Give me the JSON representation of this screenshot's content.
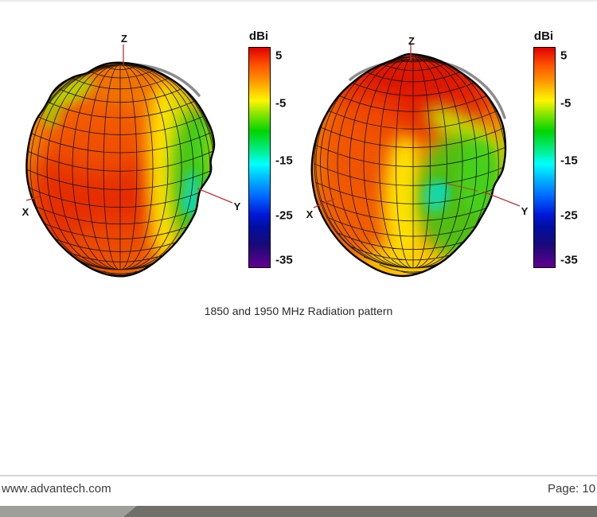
{
  "figure": {
    "caption": "1850 and 1950 MHz Radiation pattern",
    "plots": [
      {
        "axes": {
          "z": "Z",
          "x": "X",
          "y": "Y"
        }
      },
      {
        "axes": {
          "z": "Z",
          "x": "X",
          "y": "Y"
        }
      }
    ],
    "colorbar": {
      "title": "dBi",
      "ticks": [
        "5",
        "-5",
        "-15",
        "-25",
        "-35"
      ],
      "scale_colors": [
        "#e10000",
        "#ff8a00",
        "#fff600",
        "#00d400",
        "#00ffff",
        "#0064ff",
        "#000f9e",
        "#62008f"
      ]
    }
  },
  "footer": {
    "website": "www.advantech.com",
    "page_label": "Page: 10"
  }
}
